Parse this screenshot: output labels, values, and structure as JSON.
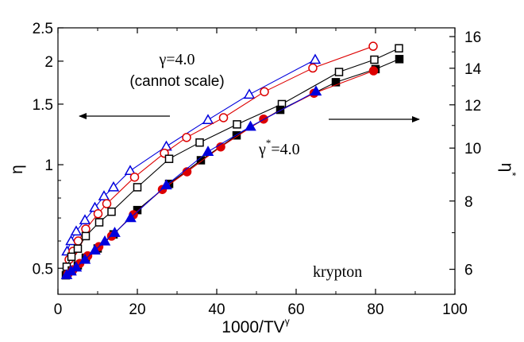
{
  "chart_data": {
    "type": "scatter",
    "xlabel": "1000/TV",
    "xlabel_sup": "γ",
    "ylabel": "η",
    "y2label": "η",
    "y2label_sup": "*",
    "xlim": [
      0,
      100
    ],
    "ylim": [
      0.42,
      2.5
    ],
    "y_scale": "log",
    "y2lim": [
      5.4,
      16.6
    ],
    "y2_scale": "log",
    "x_ticks": [
      0,
      20,
      40,
      60,
      80,
      100
    ],
    "y_ticks": [
      {
        "value": 0.5,
        "label": "0.5"
      },
      {
        "value": 1,
        "label": "1"
      },
      {
        "value": 1.5,
        "label": "1.5"
      },
      {
        "value": 2,
        "label": "2"
      },
      {
        "value": 2.5,
        "label": "2.5"
      }
    ],
    "y2_ticks": [
      6,
      8,
      10,
      12,
      14,
      16
    ],
    "grid": false,
    "annotations": {
      "left_title": "γ=4.0",
      "left_subtitle": "(cannot scale)",
      "right_gamma": "γ",
      "right_star": "*",
      "right_value": "=4.0",
      "material": "krypton"
    },
    "series": [
      {
        "axis": "left",
        "marker": "open-triangle",
        "color": "#0000dd",
        "connected": true,
        "points": [
          [
            2.3,
            0.56
          ],
          [
            3.3,
            0.6
          ],
          [
            4.6,
            0.64
          ],
          [
            6.8,
            0.69
          ],
          [
            9.3,
            0.75
          ],
          [
            11.6,
            0.81
          ],
          [
            14.0,
            0.86
          ],
          [
            18.2,
            0.96
          ],
          [
            27.3,
            1.13
          ],
          [
            37.8,
            1.35
          ],
          [
            48.2,
            1.6
          ],
          [
            64.8,
            2.02
          ]
        ]
      },
      {
        "axis": "left",
        "marker": "open-circle",
        "color": "#dd0000",
        "connected": true,
        "points": [
          [
            2.8,
            0.53
          ],
          [
            3.8,
            0.56
          ],
          [
            5.1,
            0.6
          ],
          [
            7.0,
            0.65
          ],
          [
            10.1,
            0.72
          ],
          [
            12.3,
            0.77
          ],
          [
            19.3,
            0.92
          ],
          [
            26.8,
            1.08
          ],
          [
            32.4,
            1.2
          ],
          [
            41.7,
            1.37
          ],
          [
            52.0,
            1.63
          ],
          [
            64.2,
            1.91
          ],
          [
            79.4,
            2.21
          ]
        ]
      },
      {
        "axis": "left",
        "marker": "open-square",
        "color": "#000000",
        "connected": true,
        "points": [
          [
            2.2,
            0.505
          ],
          [
            3.4,
            0.54
          ],
          [
            5.0,
            0.57
          ],
          [
            7.0,
            0.62
          ],
          [
            10.4,
            0.68
          ],
          [
            13.5,
            0.73
          ],
          [
            20.0,
            0.86
          ],
          [
            28.0,
            1.04
          ],
          [
            35.7,
            1.16
          ],
          [
            45.1,
            1.31
          ],
          [
            56.4,
            1.5
          ],
          [
            70.8,
            1.86
          ],
          [
            79.7,
            2.02
          ],
          [
            85.9,
            2.18
          ]
        ]
      },
      {
        "axis": "right",
        "marker": "filled-square",
        "color": "#000000",
        "connected": true,
        "points": [
          [
            2.0,
            5.85
          ],
          [
            3.5,
            5.97
          ],
          [
            5.0,
            6.1
          ],
          [
            7.0,
            6.3
          ],
          [
            10.0,
            6.55
          ],
          [
            14.0,
            6.95
          ],
          [
            20.0,
            7.7
          ],
          [
            28.0,
            8.6
          ],
          [
            36.0,
            9.5
          ],
          [
            45.0,
            10.55
          ],
          [
            56.0,
            11.75
          ],
          [
            70.0,
            13.2
          ],
          [
            80.0,
            13.95
          ],
          [
            86.0,
            14.55
          ]
        ]
      },
      {
        "axis": "right",
        "marker": "filled-circle",
        "color": "#dd0000",
        "connected": true,
        "points": [
          [
            2.5,
            5.88
          ],
          [
            3.8,
            5.99
          ],
          [
            5.5,
            6.15
          ],
          [
            7.5,
            6.35
          ],
          [
            10.3,
            6.6
          ],
          [
            13.5,
            6.9
          ],
          [
            19.0,
            7.55
          ],
          [
            26.3,
            8.4
          ],
          [
            32.5,
            9.05
          ],
          [
            41.0,
            10.05
          ],
          [
            51.8,
            11.3
          ],
          [
            64.5,
            12.6
          ],
          [
            79.5,
            13.85
          ]
        ]
      },
      {
        "axis": "right",
        "marker": "filled-triangle",
        "color": "#0000dd",
        "connected": true,
        "points": [
          [
            2.2,
            5.86
          ],
          [
            3.3,
            5.95
          ],
          [
            4.6,
            6.05
          ],
          [
            6.8,
            6.25
          ],
          [
            9.3,
            6.5
          ],
          [
            11.8,
            6.75
          ],
          [
            14.3,
            7.0
          ],
          [
            18.3,
            7.45
          ],
          [
            27.3,
            8.55
          ],
          [
            37.8,
            9.85
          ],
          [
            48.5,
            10.95
          ],
          [
            65.0,
            12.7
          ]
        ]
      }
    ]
  }
}
